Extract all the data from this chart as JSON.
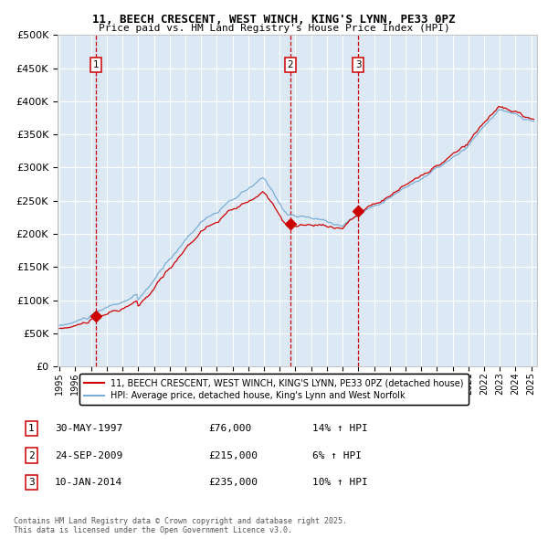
{
  "title_line1": "11, BEECH CRESCENT, WEST WINCH, KING'S LYNN, PE33 0PZ",
  "title_line2": "Price paid vs. HM Land Registry's House Price Index (HPI)",
  "legend_red": "11, BEECH CRESCENT, WEST WINCH, KING'S LYNN, PE33 0PZ (detached house)",
  "legend_blue": "HPI: Average price, detached house, King's Lynn and West Norfolk",
  "sale1_date": "30-MAY-1997",
  "sale1_price": 76000,
  "sale1_hpi": "14% ↑ HPI",
  "sale2_date": "24-SEP-2009",
  "sale2_price": 215000,
  "sale2_hpi": "6% ↑ HPI",
  "sale3_date": "10-JAN-2014",
  "sale3_price": 235000,
  "sale3_hpi": "10% ↑ HPI",
  "copyright": "Contains HM Land Registry data © Crown copyright and database right 2025.\nThis data is licensed under the Open Government Licence v3.0.",
  "bg_color": "#dce9f5",
  "red_color": "#cc0000",
  "blue_color": "#7aadd4",
  "vline_color": "#cc0000",
  "grid_color": "#ffffff",
  "outer_bg": "#ffffff",
  "ylim": [
    0,
    500000
  ],
  "yticks": [
    0,
    50000,
    100000,
    150000,
    200000,
    250000,
    300000,
    350000,
    400000,
    450000,
    500000
  ]
}
